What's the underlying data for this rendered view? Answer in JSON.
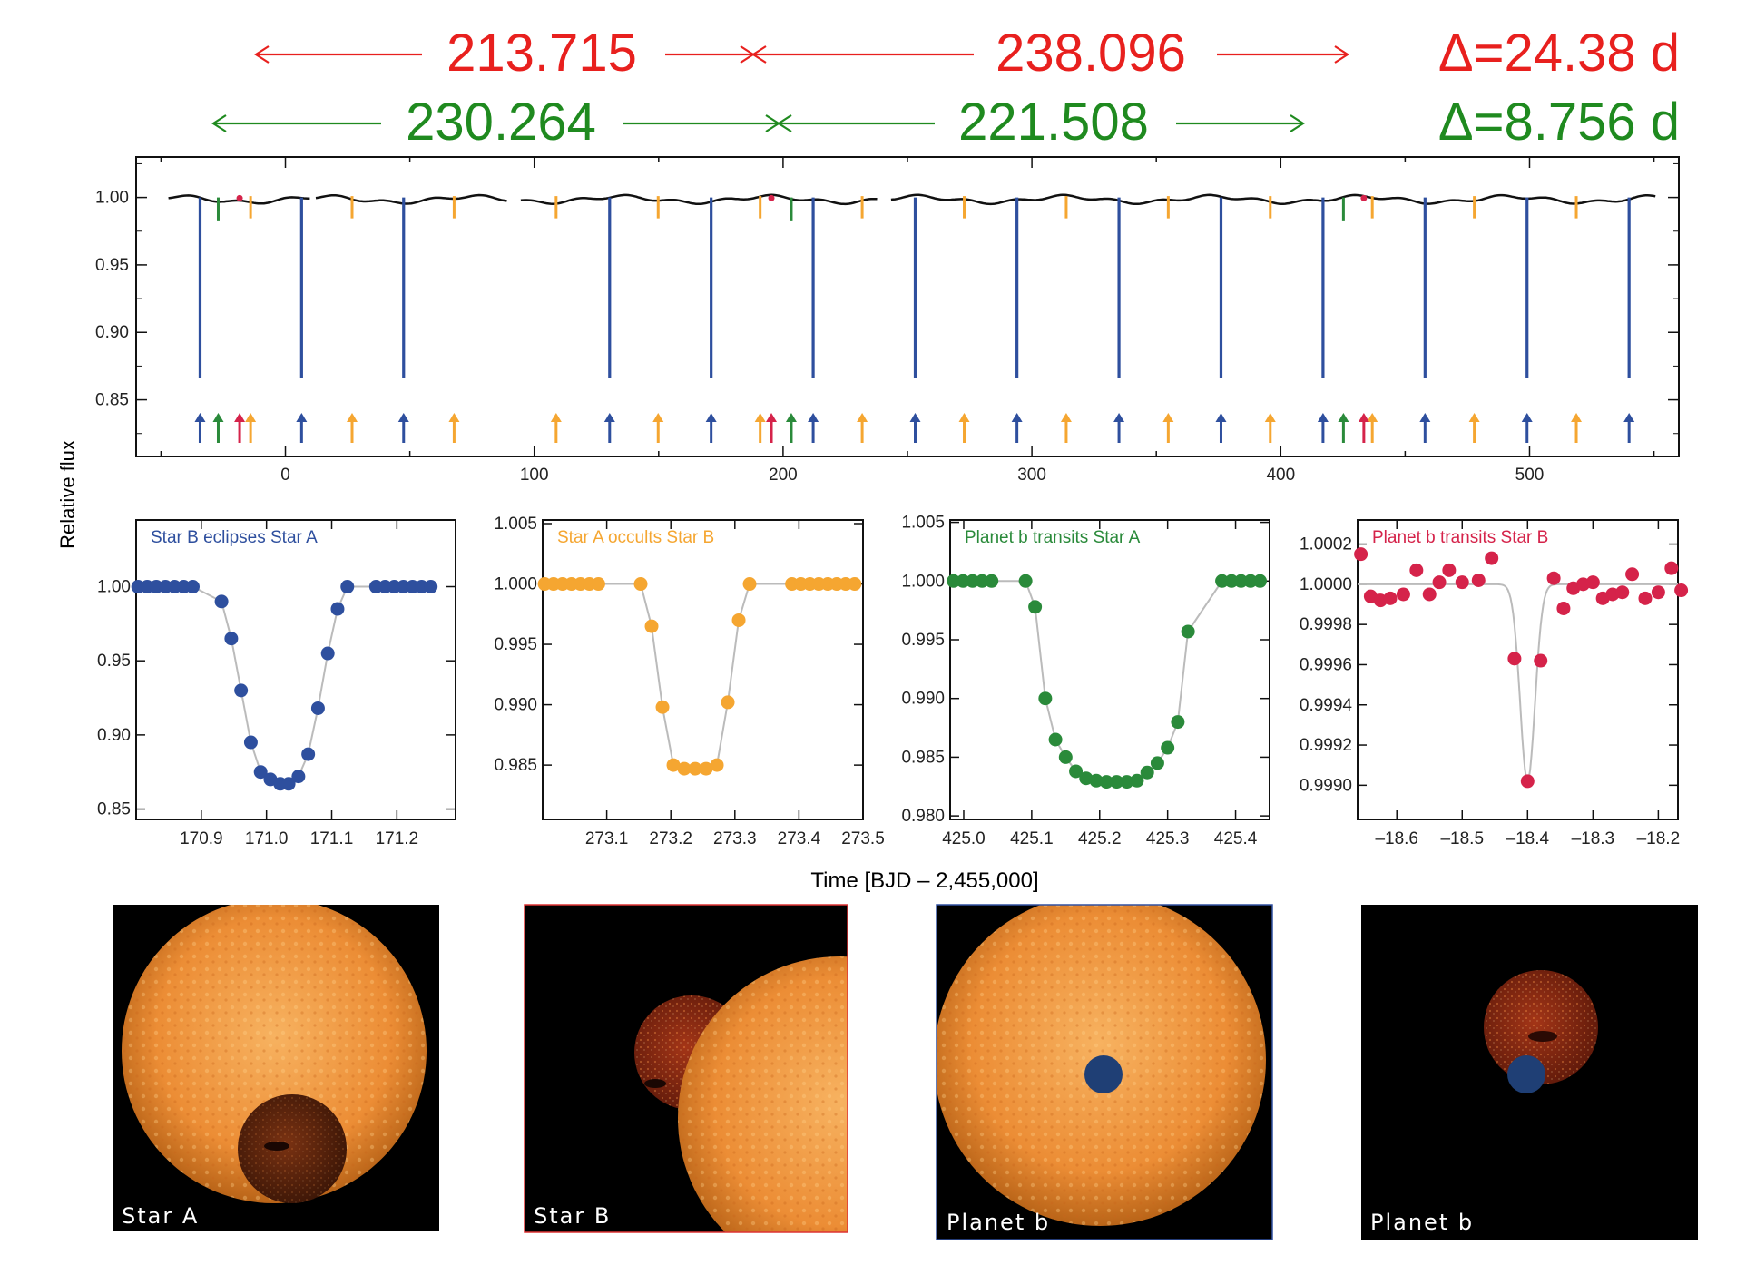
{
  "colors": {
    "star_b_eclipse": "#2e4f9e",
    "star_a_occult": "#f5a631",
    "planet_star_a": "#2a8a3a",
    "planet_star_b": "#d5234a",
    "red_annot": "#e8201e",
    "green_annot": "#1f8a1f",
    "lightcurve": "#111111",
    "model_curve": "#bbbbbb"
  },
  "annotations": {
    "red_row": [
      "213.715",
      "238.096"
    ],
    "red_delta": "Δ=24.38 d",
    "green_row": [
      "230.264",
      "221.508"
    ],
    "green_delta": "Δ=8.756 d"
  },
  "axes": {
    "ylabel": "Relative flux",
    "xlabel": "Time [BJD – 2,455,000]"
  },
  "chart_data": [
    {
      "type": "line",
      "panel": "full-lightcurve",
      "xlim": [
        -60,
        560
      ],
      "ylim": [
        0.808,
        1.03
      ],
      "xticks": [
        0,
        100,
        200,
        300,
        400,
        500
      ],
      "xtick_labels": [
        "0",
        "100",
        "200",
        "300",
        "400",
        "500"
      ],
      "yticks": [
        0.85,
        0.9,
        0.95,
        1.0
      ],
      "ytick_labels": [
        "0.85",
        "0.90",
        "0.95",
        "1.00"
      ],
      "primary_eclipses_star_b_eclipses_star_a": [
        -34.3,
        6.5,
        47.5,
        130.3,
        171.1,
        212.1,
        253.1,
        294.0,
        335.0,
        376.0,
        417.0,
        458.0,
        499.0,
        540.0
      ],
      "primary_depth": 0.866,
      "secondary_eclipses_star_a_occults_star_b": [
        -14.0,
        26.8,
        67.8,
        108.8,
        149.8,
        190.8,
        231.8,
        272.8,
        313.8,
        354.8,
        395.8,
        436.8,
        477.8,
        518.8
      ],
      "planet_transits_star_a": [
        -27.0,
        203.3,
        425.2
      ],
      "planet_transits_star_b": [
        -18.4,
        195.3,
        433.4
      ],
      "data_gaps": [
        [
          10,
          12
        ],
        [
          89,
          94
        ],
        [
          238,
          243
        ]
      ]
    },
    {
      "type": "scatter",
      "panel": "zoom-primary-eclipse",
      "title": "Star B eclipses Star A",
      "xlim": [
        170.8,
        171.29
      ],
      "ylim": [
        0.843,
        1.045
      ],
      "xticks": [
        170.9,
        171.0,
        171.1,
        171.2
      ],
      "xtick_labels": [
        "170.9",
        "171.0",
        "171.1",
        "171.2"
      ],
      "yticks": [
        0.85,
        0.9,
        0.95,
        1.0
      ],
      "ytick_labels": [
        "0.85",
        "0.90",
        "0.95",
        "1.00"
      ],
      "x": [
        170.803,
        170.817,
        170.831,
        170.845,
        170.859,
        170.873,
        170.887,
        170.931,
        170.946,
        170.961,
        170.976,
        170.991,
        171.006,
        171.021,
        171.034,
        171.049,
        171.064,
        171.079,
        171.094,
        171.109,
        171.124,
        171.168,
        171.182,
        171.196,
        171.21,
        171.224,
        171.238,
        171.252
      ],
      "y": [
        1.0,
        1.0,
        1.0,
        1.0,
        1.0,
        1.0,
        1.0,
        0.99,
        0.965,
        0.93,
        0.895,
        0.875,
        0.87,
        0.867,
        0.867,
        0.872,
        0.887,
        0.918,
        0.955,
        0.985,
        1.0,
        1.0,
        1.0,
        1.0,
        1.0,
        1.0,
        1.0,
        1.0
      ]
    },
    {
      "type": "scatter",
      "panel": "zoom-secondary-eclipse",
      "title": "Star A occults Star B",
      "xlim": [
        273.0,
        273.5
      ],
      "ylim": [
        0.9805,
        1.0053
      ],
      "xticks": [
        273.1,
        273.2,
        273.3,
        273.4,
        273.5
      ],
      "xtick_labels": [
        "273.1",
        "273.2",
        "273.3",
        "273.4",
        "273.5"
      ],
      "yticks": [
        0.985,
        0.99,
        0.995,
        1.0,
        1.005
      ],
      "ytick_labels": [
        "0.985",
        "0.990",
        "0.995",
        "1.000",
        "1.005"
      ],
      "x": [
        273.003,
        273.017,
        273.031,
        273.045,
        273.059,
        273.073,
        273.087,
        273.153,
        273.17,
        273.187,
        273.204,
        273.221,
        273.238,
        273.255,
        273.272,
        273.289,
        273.306,
        273.323,
        273.389,
        273.403,
        273.417,
        273.431,
        273.445,
        273.459,
        273.473,
        273.487
      ],
      "y": [
        1.0,
        1.0,
        1.0,
        1.0,
        1.0,
        1.0,
        1.0,
        1.0,
        0.9965,
        0.9898,
        0.985,
        0.9847,
        0.9847,
        0.9847,
        0.985,
        0.9902,
        0.997,
        1.0,
        1.0,
        1.0,
        1.0,
        1.0,
        1.0,
        1.0,
        1.0,
        1.0
      ]
    },
    {
      "type": "scatter",
      "panel": "zoom-planet-transit-star-a",
      "title": "Planet b transits Star A",
      "xlim": [
        424.98,
        425.45
      ],
      "ylim": [
        0.9797,
        1.0052
      ],
      "xticks": [
        425.0,
        425.1,
        425.2,
        425.3,
        425.4
      ],
      "xtick_labels": [
        "425.0",
        "425.1",
        "425.2",
        "425.3",
        "425.4"
      ],
      "yticks": [
        0.98,
        0.985,
        0.99,
        0.995,
        1.0,
        1.005
      ],
      "ytick_labels": [
        "0.980",
        "0.985",
        "0.990",
        "0.995",
        "1.000",
        "1.005"
      ],
      "x": [
        424.985,
        424.999,
        425.013,
        425.027,
        425.041,
        425.091,
        425.105,
        425.12,
        425.135,
        425.15,
        425.165,
        425.18,
        425.195,
        425.21,
        425.225,
        425.24,
        425.255,
        425.27,
        425.285,
        425.3,
        425.315,
        425.33,
        425.38,
        425.394,
        425.408,
        425.422,
        425.436
      ],
      "y": [
        1.0,
        1.0,
        1.0,
        1.0,
        1.0,
        1.0,
        0.9978,
        0.99,
        0.9865,
        0.985,
        0.9838,
        0.9832,
        0.983,
        0.9829,
        0.9829,
        0.9829,
        0.983,
        0.9837,
        0.9845,
        0.9858,
        0.988,
        0.9957,
        1.0,
        1.0,
        1.0,
        1.0,
        1.0
      ]
    },
    {
      "type": "scatter",
      "panel": "zoom-planet-transit-star-b",
      "title": "Planet b transits Star B",
      "xlim": [
        -18.66,
        -18.17
      ],
      "ylim": [
        0.99883,
        1.00032
      ],
      "xticks": [
        -18.6,
        -18.5,
        -18.4,
        -18.3,
        -18.2
      ],
      "xtick_labels": [
        "–18.6",
        "–18.5",
        "–18.4",
        "–18.3",
        "–18.2"
      ],
      "yticks": [
        0.999,
        0.9992,
        0.9994,
        0.9996,
        0.9998,
        1.0,
        1.0002
      ],
      "ytick_labels": [
        "0.9990",
        "0.9992",
        "0.9994",
        "0.9996",
        "0.9998",
        "1.0000",
        "1.0002"
      ],
      "x": [
        -18.655,
        -18.64,
        -18.625,
        -18.61,
        -18.59,
        -18.57,
        -18.55,
        -18.535,
        -18.52,
        -18.5,
        -18.475,
        -18.455,
        -18.42,
        -18.4,
        -18.38,
        -18.36,
        -18.345,
        -18.33,
        -18.315,
        -18.3,
        -18.285,
        -18.27,
        -18.255,
        -18.24,
        -18.22,
        -18.2,
        -18.18,
        -18.165
      ],
      "y": [
        1.00015,
        0.99994,
        0.99992,
        0.99993,
        0.99995,
        1.00007,
        0.99995,
        1.00001,
        1.00007,
        1.00001,
        1.00002,
        1.00013,
        0.99963,
        0.99902,
        0.99962,
        1.00003,
        0.99988,
        0.99998,
        1.0,
        1.00001,
        0.99993,
        0.99995,
        0.99996,
        1.00005,
        0.99993,
        0.99996,
        1.00008,
        0.99997
      ]
    }
  ],
  "zoom_titles": [
    "Star B eclipses Star A",
    "Star A occults Star B",
    "Planet b transits Star A",
    "Planet b transits Star B"
  ],
  "images": [
    {
      "label": "Star A",
      "icon": "sun-disk-with-occulting-star"
    },
    {
      "label": "Star B",
      "icon": "red-star-behind-sun"
    },
    {
      "label": "Planet b",
      "icon": "sun-disk-with-planet"
    },
    {
      "label": "Planet b",
      "icon": "red-star-with-planet"
    }
  ]
}
